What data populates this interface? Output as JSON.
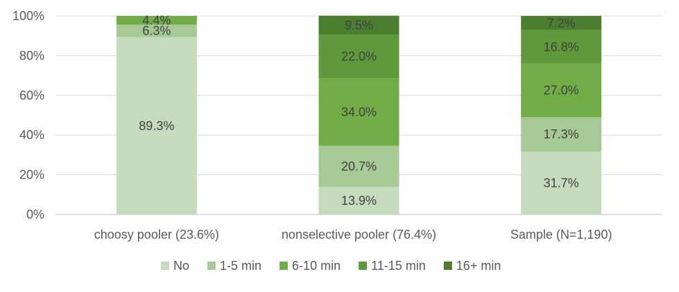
{
  "chart_data": {
    "type": "bar",
    "stacked": true,
    "percent": true,
    "categories": [
      "choosy pooler (23.6%)",
      "nonselective pooler (76.4%)",
      "Sample (N=1,190)"
    ],
    "series": [
      {
        "name": "No",
        "color": "#c5dbbd",
        "values": [
          89.3,
          13.9,
          31.7
        ]
      },
      {
        "name": "1-5 min",
        "color": "#a7c995",
        "values": [
          6.3,
          20.7,
          17.3
        ]
      },
      {
        "name": "6-10 min",
        "color": "#70ad47",
        "values": [
          4.4,
          34.0,
          27.0
        ]
      },
      {
        "name": "11-15 min",
        "color": "#5e9a3b",
        "values": [
          0.0,
          22.0,
          16.8
        ]
      },
      {
        "name": "16+ min",
        "color": "#4b7f2f",
        "values": [
          0.0,
          9.5,
          7.2
        ]
      }
    ],
    "data_labels": [
      [
        "89.3%",
        "6.3%",
        "4.4%",
        "",
        ""
      ],
      [
        "13.9%",
        "20.7%",
        "34.0%",
        "22.0%",
        "9.5%"
      ],
      [
        "31.7%",
        "17.3%",
        "27.0%",
        "16.8%",
        "7.2%"
      ]
    ],
    "y_ticks": [
      "0%",
      "20%",
      "40%",
      "60%",
      "80%",
      "100%"
    ],
    "ylim": [
      0,
      100
    ],
    "grid": true,
    "legend_position": "bottom"
  }
}
